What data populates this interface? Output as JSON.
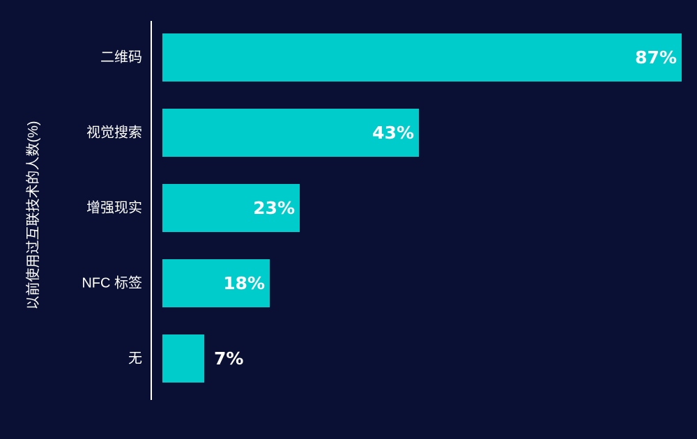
{
  "chart_data": {
    "type": "bar",
    "orientation": "horizontal",
    "title": "",
    "ylabel": "以前使用过互联技术的人数(%)",
    "xlabel": "",
    "categories": [
      "二维码",
      "视觉搜索",
      "增强现实",
      "NFC 标签",
      "无"
    ],
    "values": [
      87,
      43,
      23,
      18,
      7
    ],
    "value_labels": [
      "87%",
      "43%",
      "23%",
      "18%",
      "7%"
    ],
    "xlim": [
      0,
      87
    ],
    "grid": false,
    "legend": "none"
  },
  "colors": {
    "background": "#0a1033",
    "bar": "#00cccc",
    "text": "#ffffff",
    "axis_line": "#ffffff"
  }
}
